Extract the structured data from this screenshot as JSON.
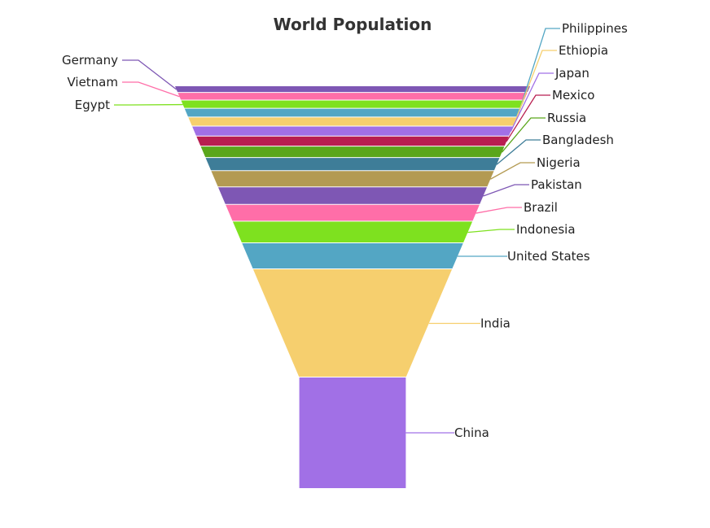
{
  "chart_data": {
    "type": "funnel",
    "title": "World Population",
    "unit": "",
    "categories": [
      "Germany",
      "Vietnam",
      "Egypt",
      "Philippines",
      "Ethiopia",
      "Japan",
      "Mexico",
      "Russia",
      "Bangladesh",
      "Nigeria",
      "Pakistan",
      "Brazil",
      "Indonesia",
      "United States",
      "India",
      "China"
    ],
    "values": [
      83,
      97,
      104,
      110,
      115,
      125,
      128,
      144,
      165,
      206,
      221,
      211,
      274,
      329,
      1366,
      1398
    ],
    "colors": [
      "#7e57b4",
      "#ff6ea8",
      "#7ee11f",
      "#53a6c4",
      "#f6cf6e",
      "#a170e6",
      "#b81e50",
      "#5aa61b",
      "#3e7d98",
      "#b39a52",
      "#7e57b4",
      "#ff6ea8",
      "#7ee11f",
      "#53a6c4",
      "#f6cf6e",
      "#a170e6"
    ],
    "label_sides": [
      "left",
      "left",
      "left",
      "right",
      "right",
      "right",
      "right",
      "right",
      "right",
      "right",
      "right",
      "right",
      "right",
      "right",
      "right",
      "right"
    ],
    "neck_ratio": 0.3,
    "legend": "none"
  }
}
